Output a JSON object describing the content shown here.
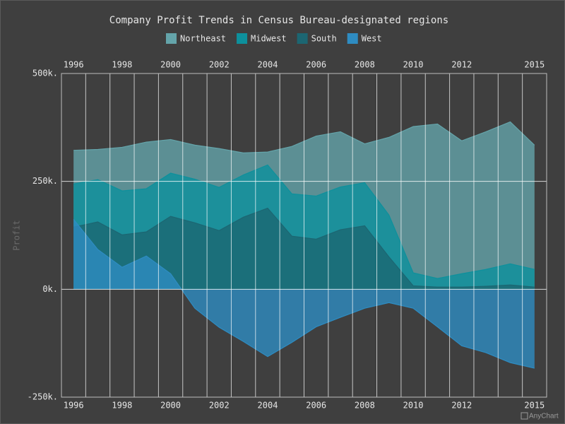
{
  "chart_data": {
    "type": "area",
    "title": "Company Profit Trends in Census Bureau-designated regions",
    "y_label": "Profit",
    "credit": "AnyChart",
    "categories": [
      "1996",
      null,
      "1998",
      null,
      "2000",
      null,
      "2002",
      null,
      "2004",
      null,
      "2006",
      null,
      "2008",
      null,
      "2010",
      null,
      "2012",
      null,
      null,
      "2015"
    ],
    "series": [
      {
        "name": "Northeast",
        "color": "#64a4aa",
        "values": [
          322,
          324,
          329,
          341,
          347,
          334,
          326,
          316,
          318,
          331,
          355,
          365,
          337,
          352,
          377,
          383,
          344,
          365,
          388,
          334
        ]
      },
      {
        "name": "Midwest",
        "color": "#0d909c",
        "values": [
          244,
          254,
          228,
          233,
          269,
          255,
          236,
          265,
          288,
          221,
          216,
          237,
          247,
          172,
          38,
          25,
          36,
          46,
          59,
          46
        ]
      },
      {
        "name": "South",
        "color": "#1c6672",
        "values": [
          144,
          156,
          126,
          133,
          169,
          154,
          136,
          167,
          188,
          123,
          116,
          138,
          147,
          75,
          8,
          5,
          5,
          7,
          10,
          5
        ]
      },
      {
        "name": "West",
        "color": "#2e8cc2",
        "values": [
          162,
          92,
          51,
          77,
          36,
          -44,
          -88,
          -121,
          -156,
          -123,
          -87,
          -65,
          -44,
          -31,
          -44,
          -87,
          -131,
          -147,
          -170,
          -183
        ]
      }
    ],
    "fill_opacity": 0.8,
    "ylim": [
      -250,
      500
    ],
    "yticks": [
      {
        "value": -250,
        "label": "-250k."
      },
      {
        "value": 0,
        "label": "0k."
      },
      {
        "value": 250,
        "label": "250k."
      },
      {
        "value": 500,
        "label": "500k."
      }
    ],
    "grid": true
  }
}
